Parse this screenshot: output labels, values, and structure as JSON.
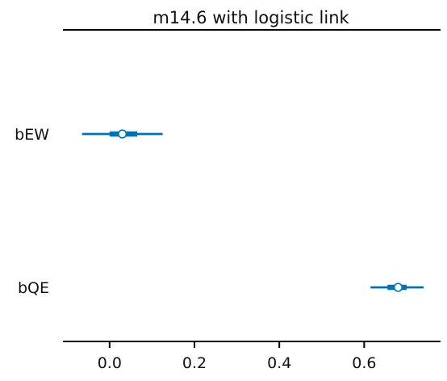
{
  "chart_data": {
    "type": "forest",
    "title": "m14.6 with logistic link",
    "xlabel": "",
    "ylabel": "",
    "xlim": [
      -0.11,
      0.78
    ],
    "xticks": [
      0.0,
      0.2,
      0.4,
      0.6
    ],
    "xtick_labels": [
      "0.0",
      "0.2",
      "0.4",
      "0.6"
    ],
    "color": "#0072b2",
    "grid": false,
    "parameters": [
      {
        "name": "bEW",
        "mean": 0.03,
        "hdi_low": -0.065,
        "hdi_high": 0.125,
        "iqr_low": 0.0,
        "iqr_high": 0.065
      },
      {
        "name": "bQE",
        "mean": 0.68,
        "hdi_low": 0.615,
        "hdi_high": 0.74,
        "iqr_low": 0.655,
        "iqr_high": 0.7
      }
    ]
  }
}
